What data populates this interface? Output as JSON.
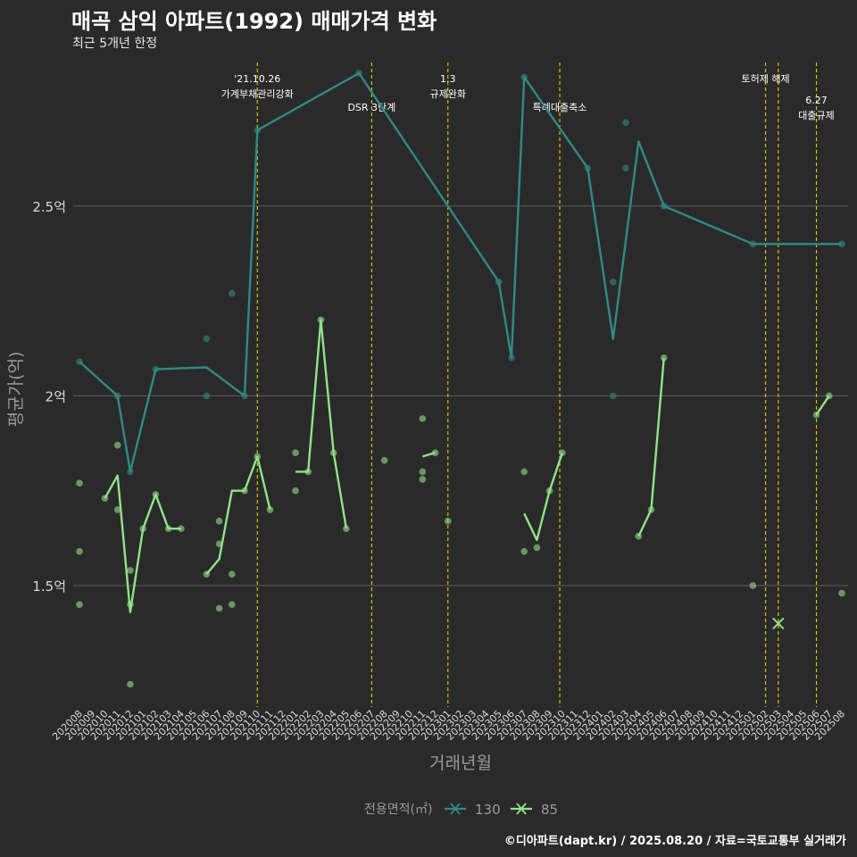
{
  "title": "매곡 삼익 아파트(1992) 매매가격 변화",
  "subtitle": "최근 5개년 한정",
  "caption": "©디아파트(dapt.kr) / 2025.08.20 / 자료=국토교통부 실거래가",
  "chart_data": {
    "type": "line",
    "xlabel": "거래년월",
    "ylabel": "평균가(억)",
    "categories": [
      "202008",
      "202009",
      "202010",
      "202011",
      "202012",
      "202101",
      "202102",
      "202103",
      "202104",
      "202105",
      "202106",
      "202107",
      "202108",
      "202109",
      "202110",
      "202111",
      "202112",
      "202201",
      "202202",
      "202203",
      "202204",
      "202205",
      "202206",
      "202207",
      "202208",
      "202209",
      "202210",
      "202211",
      "202212",
      "202301",
      "202302",
      "202303",
      "202304",
      "202305",
      "202306",
      "202307",
      "202308",
      "202309",
      "202310",
      "202311",
      "202312",
      "202401",
      "202402",
      "202403",
      "202404",
      "202405",
      "202406",
      "202407",
      "202408",
      "202409",
      "202410",
      "202411",
      "202412",
      "202501",
      "202502",
      "202503",
      "202504",
      "202505",
      "202506",
      "202507",
      "202508"
    ],
    "y_ticks": [
      1.5,
      2.0,
      2.5
    ],
    "y_tick_labels": [
      "1.5억",
      "2억",
      "2.5억"
    ],
    "ylim": [
      1.18,
      2.85
    ],
    "grid": true,
    "legend": {
      "title": "전용면적(㎡)",
      "position": "bottom",
      "entries": [
        "130",
        "85"
      ]
    },
    "colors": {
      "130": "#2f8a86",
      "85": "#8fe388",
      "vline": "#d4d400",
      "grid": "#5c5c5c",
      "axis_text": "#d9d9d9",
      "axis_title": "#9a9a9a"
    },
    "series": [
      {
        "name": "130",
        "segments": [
          [
            [
              0,
              2.09
            ],
            [
              3,
              2.0
            ],
            [
              4,
              1.8
            ],
            [
              6,
              2.07
            ],
            [
              10,
              2.075
            ],
            [
              13,
              2.0
            ],
            [
              14,
              2.7
            ],
            [
              22,
              2.85
            ],
            [
              33,
              2.3
            ],
            [
              34,
              2.1
            ],
            [
              35,
              2.84
            ],
            [
              40,
              2.6
            ],
            [
              42,
              2.15
            ],
            [
              44,
              2.67
            ],
            [
              46,
              2.5
            ],
            [
              53,
              2.4
            ],
            [
              60,
              2.4
            ]
          ]
        ],
        "points": [
          [
            0,
            2.09
          ],
          [
            3,
            2.0
          ],
          [
            4,
            1.8
          ],
          [
            6,
            2.07
          ],
          [
            10,
            2.15
          ],
          [
            10,
            2.0
          ],
          [
            12,
            2.27
          ],
          [
            13,
            2.0
          ],
          [
            14,
            2.7
          ],
          [
            22,
            2.85
          ],
          [
            33,
            2.3
          ],
          [
            34,
            2.1
          ],
          [
            35,
            2.84
          ],
          [
            40,
            2.6
          ],
          [
            42,
            2.3
          ],
          [
            42,
            2.0
          ],
          [
            43,
            2.72
          ],
          [
            43,
            2.6
          ],
          [
            46,
            2.5
          ],
          [
            53,
            2.4
          ],
          [
            60,
            2.4
          ]
        ]
      },
      {
        "name": "85",
        "segments": [
          [
            [
              2,
              1.73
            ],
            [
              3,
              1.79
            ],
            [
              4,
              1.43
            ],
            [
              5,
              1.65
            ],
            [
              6,
              1.74
            ],
            [
              7,
              1.65
            ],
            [
              8,
              1.65
            ]
          ],
          [
            [
              10,
              1.53
            ],
            [
              11,
              1.57
            ],
            [
              12,
              1.75
            ],
            [
              13,
              1.75
            ],
            [
              14,
              1.84
            ],
            [
              15,
              1.7
            ]
          ],
          [
            [
              17,
              1.8
            ],
            [
              18,
              1.8
            ],
            [
              19,
              2.2
            ],
            [
              20,
              1.85
            ],
            [
              21,
              1.65
            ]
          ],
          [
            [
              27,
              1.84
            ],
            [
              28,
              1.85
            ]
          ],
          [
            [
              35,
              1.69
            ],
            [
              36,
              1.62
            ],
            [
              37,
              1.75
            ],
            [
              38,
              1.85
            ]
          ],
          [
            [
              44,
              1.63
            ],
            [
              45,
              1.7
            ],
            [
              46,
              2.1
            ]
          ],
          [
            [
              58,
              1.95
            ],
            [
              59,
              2.0
            ]
          ]
        ],
        "points": [
          [
            0,
            1.77
          ],
          [
            0,
            1.59
          ],
          [
            0,
            1.45
          ],
          [
            2,
            1.73
          ],
          [
            3,
            1.87
          ],
          [
            3,
            1.7
          ],
          [
            4,
            1.54
          ],
          [
            4,
            1.45
          ],
          [
            4,
            1.24
          ],
          [
            5,
            1.65
          ],
          [
            6,
            1.74
          ],
          [
            7,
            1.65
          ],
          [
            8,
            1.65
          ],
          [
            10,
            1.53
          ],
          [
            11,
            1.67
          ],
          [
            11,
            1.61
          ],
          [
            11,
            1.44
          ],
          [
            12,
            1.53
          ],
          [
            12,
            1.45
          ],
          [
            13,
            1.75
          ],
          [
            14,
            1.84
          ],
          [
            15,
            1.7
          ],
          [
            17,
            1.85
          ],
          [
            17,
            1.75
          ],
          [
            18,
            1.8
          ],
          [
            19,
            2.2
          ],
          [
            20,
            1.85
          ],
          [
            21,
            1.65
          ],
          [
            24,
            1.83
          ],
          [
            27,
            1.94
          ],
          [
            27,
            1.8
          ],
          [
            27,
            1.78
          ],
          [
            28,
            1.85
          ],
          [
            29,
            1.67
          ],
          [
            35,
            1.8
          ],
          [
            35,
            1.59
          ],
          [
            36,
            1.6
          ],
          [
            37,
            1.75
          ],
          [
            38,
            1.85
          ],
          [
            44,
            1.63
          ],
          [
            45,
            1.7
          ],
          [
            46,
            2.1
          ],
          [
            53,
            1.5
          ],
          [
            58,
            1.95
          ],
          [
            59,
            2.0
          ],
          [
            60,
            1.48
          ]
        ],
        "cancelled": [
          [
            55,
            1.4
          ]
        ]
      }
    ],
    "events": [
      {
        "at": 14,
        "label_lines": [
          "'21.10.26",
          "가계부채관리강화"
        ],
        "row": 0
      },
      {
        "at": 23,
        "label_lines": [
          "DSR 3단계"
        ],
        "row": 1
      },
      {
        "at": 29,
        "label_lines": [
          "1.3",
          "규제완화"
        ],
        "row": 0
      },
      {
        "at": 37.8,
        "label_lines": [
          "특례대출축소"
        ],
        "row": 1
      },
      {
        "at": 54,
        "label_lines": [
          "토허제 해제"
        ],
        "row": 0
      },
      {
        "at": 55,
        "label_lines": [],
        "row": 0
      },
      {
        "at": 58,
        "label_lines": [
          "6.27",
          "대출규제"
        ],
        "row": 2
      }
    ]
  }
}
